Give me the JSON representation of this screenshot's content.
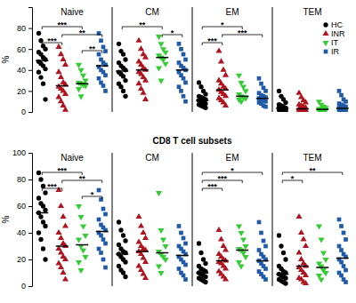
{
  "chart_data": [
    {
      "type": "scatter",
      "ylabel": "%",
      "ylim": [
        0,
        100
      ],
      "yticks": [
        0,
        20,
        40,
        60,
        80
      ],
      "tick_labels": "y",
      "legend": "top right",
      "series": [
        {
          "name": "HC",
          "color": "#000000",
          "marker": "circle"
        },
        {
          "name": "INR",
          "color": "#b0141e",
          "marker": "triangle-up"
        },
        {
          "name": "IT",
          "color": "#33cc33",
          "marker": "triangle-down"
        },
        {
          "name": "IR",
          "color": "#1e5aa8",
          "marker": "square"
        }
      ],
      "panels": [
        {
          "title": "Naive",
          "values": [
            [
              75,
              68,
              63,
              60,
              57,
              55,
              52,
              50,
              48,
              46,
              44,
              41,
              38,
              33,
              27,
              12
            ],
            [
              62,
              55,
              50,
              45,
              38,
              33,
              28,
              26,
              24,
              22,
              20,
              17,
              14,
              10,
              6,
              2
            ],
            [
              45,
              40,
              35,
              30,
              28,
              27,
              26,
              25,
              22,
              15
            ],
            [
              75,
              68,
              62,
              58,
              55,
              50,
              47,
              45,
              43,
              40,
              38,
              35,
              32,
              28,
              25,
              20
            ]
          ],
          "medians": [
            49,
            25,
            27,
            44
          ],
          "comparisons": [
            {
              "groups": [
                0,
                1
              ],
              "label": "***"
            },
            {
              "groups": [
                0,
                2
              ],
              "label": "***"
            },
            {
              "groups": [
                1,
                3
              ],
              "label": "**"
            },
            {
              "groups": [
                2,
                3
              ],
              "label": "**"
            }
          ]
        },
        {
          "title": "CM",
          "values": [
            [
              65,
              58,
              55,
              50,
              47,
              44,
              42,
              40,
              38,
              36,
              34,
              30,
              27,
              24,
              20,
              15
            ],
            [
              68,
              60,
              55,
              52,
              48,
              45,
              42,
              40,
              38,
              36,
              33,
              30,
              27,
              22,
              18,
              12
            ],
            [
              72,
              65,
              60,
              57,
              54,
              52,
              50,
              46,
              42,
              30
            ],
            [
              65,
              60,
              55,
              50,
              47,
              44,
              42,
              40,
              38,
              35,
              32,
              28,
              24,
              20,
              15,
              10
            ]
          ],
          "medians": [
            39,
            40,
            52,
            40
          ],
          "comparisons": [
            {
              "groups": [
                0,
                2
              ],
              "label": "**"
            },
            {
              "groups": [
                2,
                3
              ],
              "label": "*"
            }
          ]
        },
        {
          "title": "EM",
          "values": [
            [
              28,
              24,
              20,
              17,
              15,
              14,
              13,
              12,
              11,
              10,
              9,
              8,
              7,
              6,
              5,
              4
            ],
            [
              58,
              48,
              40,
              35,
              30,
              27,
              24,
              22,
              21,
              19,
              17,
              15,
              13,
              11,
              9,
              6
            ],
            [
              35,
              28,
              24,
              20,
              17,
              15,
              14,
              13,
              12,
              10
            ],
            [
              32,
              27,
              23,
              20,
              18,
              16,
              15,
              14,
              13,
              12,
              11,
              10,
              9,
              8,
              6,
              5
            ]
          ],
          "medians": [
            11,
            21,
            15,
            13
          ],
          "comparisons": [
            {
              "groups": [
                0,
                1
              ],
              "label": "***"
            },
            {
              "groups": [
                0,
                2
              ],
              "label": "*"
            },
            {
              "groups": [
                1,
                3
              ],
              "label": "***"
            }
          ]
        },
        {
          "title": "TEM",
          "values": [
            [
              20,
              15,
              12,
              9,
              7,
              6,
              5,
              4,
              4,
              3,
              3,
              2,
              2,
              1,
              1,
              0.5
            ],
            [
              18,
              14,
              11,
              9,
              7,
              6,
              5,
              4,
              3,
              3,
              2,
              2,
              1,
              1,
              1,
              0.5
            ],
            [
              10,
              7,
              5,
              4,
              3,
              3,
              2,
              2,
              1,
              1
            ],
            [
              20,
              16,
              12,
              10,
              8,
              7,
              6,
              5,
              4,
              3,
              3,
              2,
              2,
              1,
              1,
              0.5
            ]
          ],
          "medians": [
            3.5,
            3,
            2.5,
            3.5
          ],
          "comparisons": []
        }
      ]
    },
    {
      "type": "scatter",
      "title": "CD8 T cell subsets",
      "ylabel": "%",
      "ylim": [
        0,
        100
      ],
      "yticks": [
        0,
        20,
        40,
        60,
        80,
        100
      ],
      "tick_labels": "y",
      "series": [
        {
          "color": "#000000",
          "marker": "circle"
        },
        {
          "color": "#b0141e",
          "marker": "triangle-up"
        },
        {
          "color": "#33cc33",
          "marker": "triangle-down"
        },
        {
          "color": "#1e5aa8",
          "marker": "square"
        }
      ],
      "panels": [
        {
          "title": "Naive",
          "values": [
            [
              85,
              80,
              75,
              70,
              66,
              62,
              60,
              57,
              55,
              52,
              48,
              45,
              40,
              35,
              28,
              20
            ],
            [
              72,
              60,
              52,
              45,
              40,
              36,
              32,
              30,
              28,
              25,
              22,
              20,
              17,
              14,
              10,
              5
            ],
            [
              60,
              52,
              45,
              38,
              35,
              30,
              27,
              22,
              18,
              12
            ],
            [
              72,
              65,
              58,
              54,
              50,
              46,
              44,
              42,
              40,
              38,
              35,
              32,
              28,
              25,
              20,
              14
            ]
          ],
          "medians": [
            55,
            30,
            31,
            41
          ],
          "comparisons": [
            {
              "groups": [
                0,
                1
              ],
              "label": "***"
            },
            {
              "groups": [
                0,
                2
              ],
              "label": "***"
            },
            {
              "groups": [
                1,
                3
              ],
              "label": "**"
            },
            {
              "groups": [
                2,
                3
              ],
              "label": "*"
            }
          ]
        },
        {
          "title": "CM",
          "values": [
            [
              48,
              42,
              38,
              34,
              31,
              28,
              26,
              25,
              24,
              22,
              20,
              18,
              15,
              12,
              10,
              7
            ],
            [
              52,
              45,
              40,
              36,
              33,
              30,
              28,
              27,
              26,
              24,
              21,
              18,
              15,
              12,
              9,
              6
            ],
            [
              70,
              42,
              35,
              30,
              26,
              24,
              22,
              20,
              15,
              10
            ],
            [
              45,
              40,
              36,
              32,
              30,
              28,
              26,
              24,
              22,
              20,
              18,
              16,
              13,
              10,
              8,
              5
            ]
          ],
          "medians": [
            24,
            26,
            25,
            23
          ],
          "comparisons": []
        },
        {
          "title": "EM",
          "values": [
            [
              32,
              25,
              20,
              17,
              15,
              13,
              12,
              11,
              10,
              9,
              8,
              7,
              6,
              5,
              4,
              3
            ],
            [
              42,
              35,
              30,
              27,
              24,
              22,
              20,
              19,
              18,
              17,
              15,
              13,
              11,
              9,
              7,
              5
            ],
            [
              45,
              40,
              35,
              30,
              28,
              27,
              25,
              22,
              18,
              15
            ],
            [
              48,
              40,
              34,
              30,
              27,
              24,
              22,
              20,
              19,
              17,
              15,
              13,
              11,
              9,
              7,
              5
            ]
          ],
          "medians": [
            10,
            19,
            27,
            19
          ],
          "comparisons": [
            {
              "groups": [
                0,
                1
              ],
              "label": "***"
            },
            {
              "groups": [
                0,
                2
              ],
              "label": "***"
            },
            {
              "groups": [
                0,
                3
              ],
              "label": "*"
            }
          ]
        },
        {
          "title": "TEM",
          "values": [
            [
              38,
              30,
              25,
              20,
              15,
              13,
              11,
              10,
              9,
              8,
              7,
              6,
              5,
              4,
              3,
              2
            ],
            [
              52,
              40,
              35,
              30,
              25,
              20,
              17,
              15,
              14,
              12,
              10,
              8,
              6,
              5,
              3,
              2
            ],
            [
              45,
              35,
              25,
              20,
              17,
              15,
              12,
              10,
              8,
              5
            ],
            [
              50,
              45,
              40,
              35,
              30,
              27,
              24,
              22,
              20,
              18,
              15,
              12,
              10,
              8,
              5,
              3
            ]
          ],
          "medians": [
            9,
            15,
            14,
            21
          ],
          "comparisons": [
            {
              "groups": [
                0,
                1
              ],
              "label": "*"
            },
            {
              "groups": [
                0,
                3
              ],
              "label": "**"
            }
          ]
        }
      ]
    }
  ]
}
